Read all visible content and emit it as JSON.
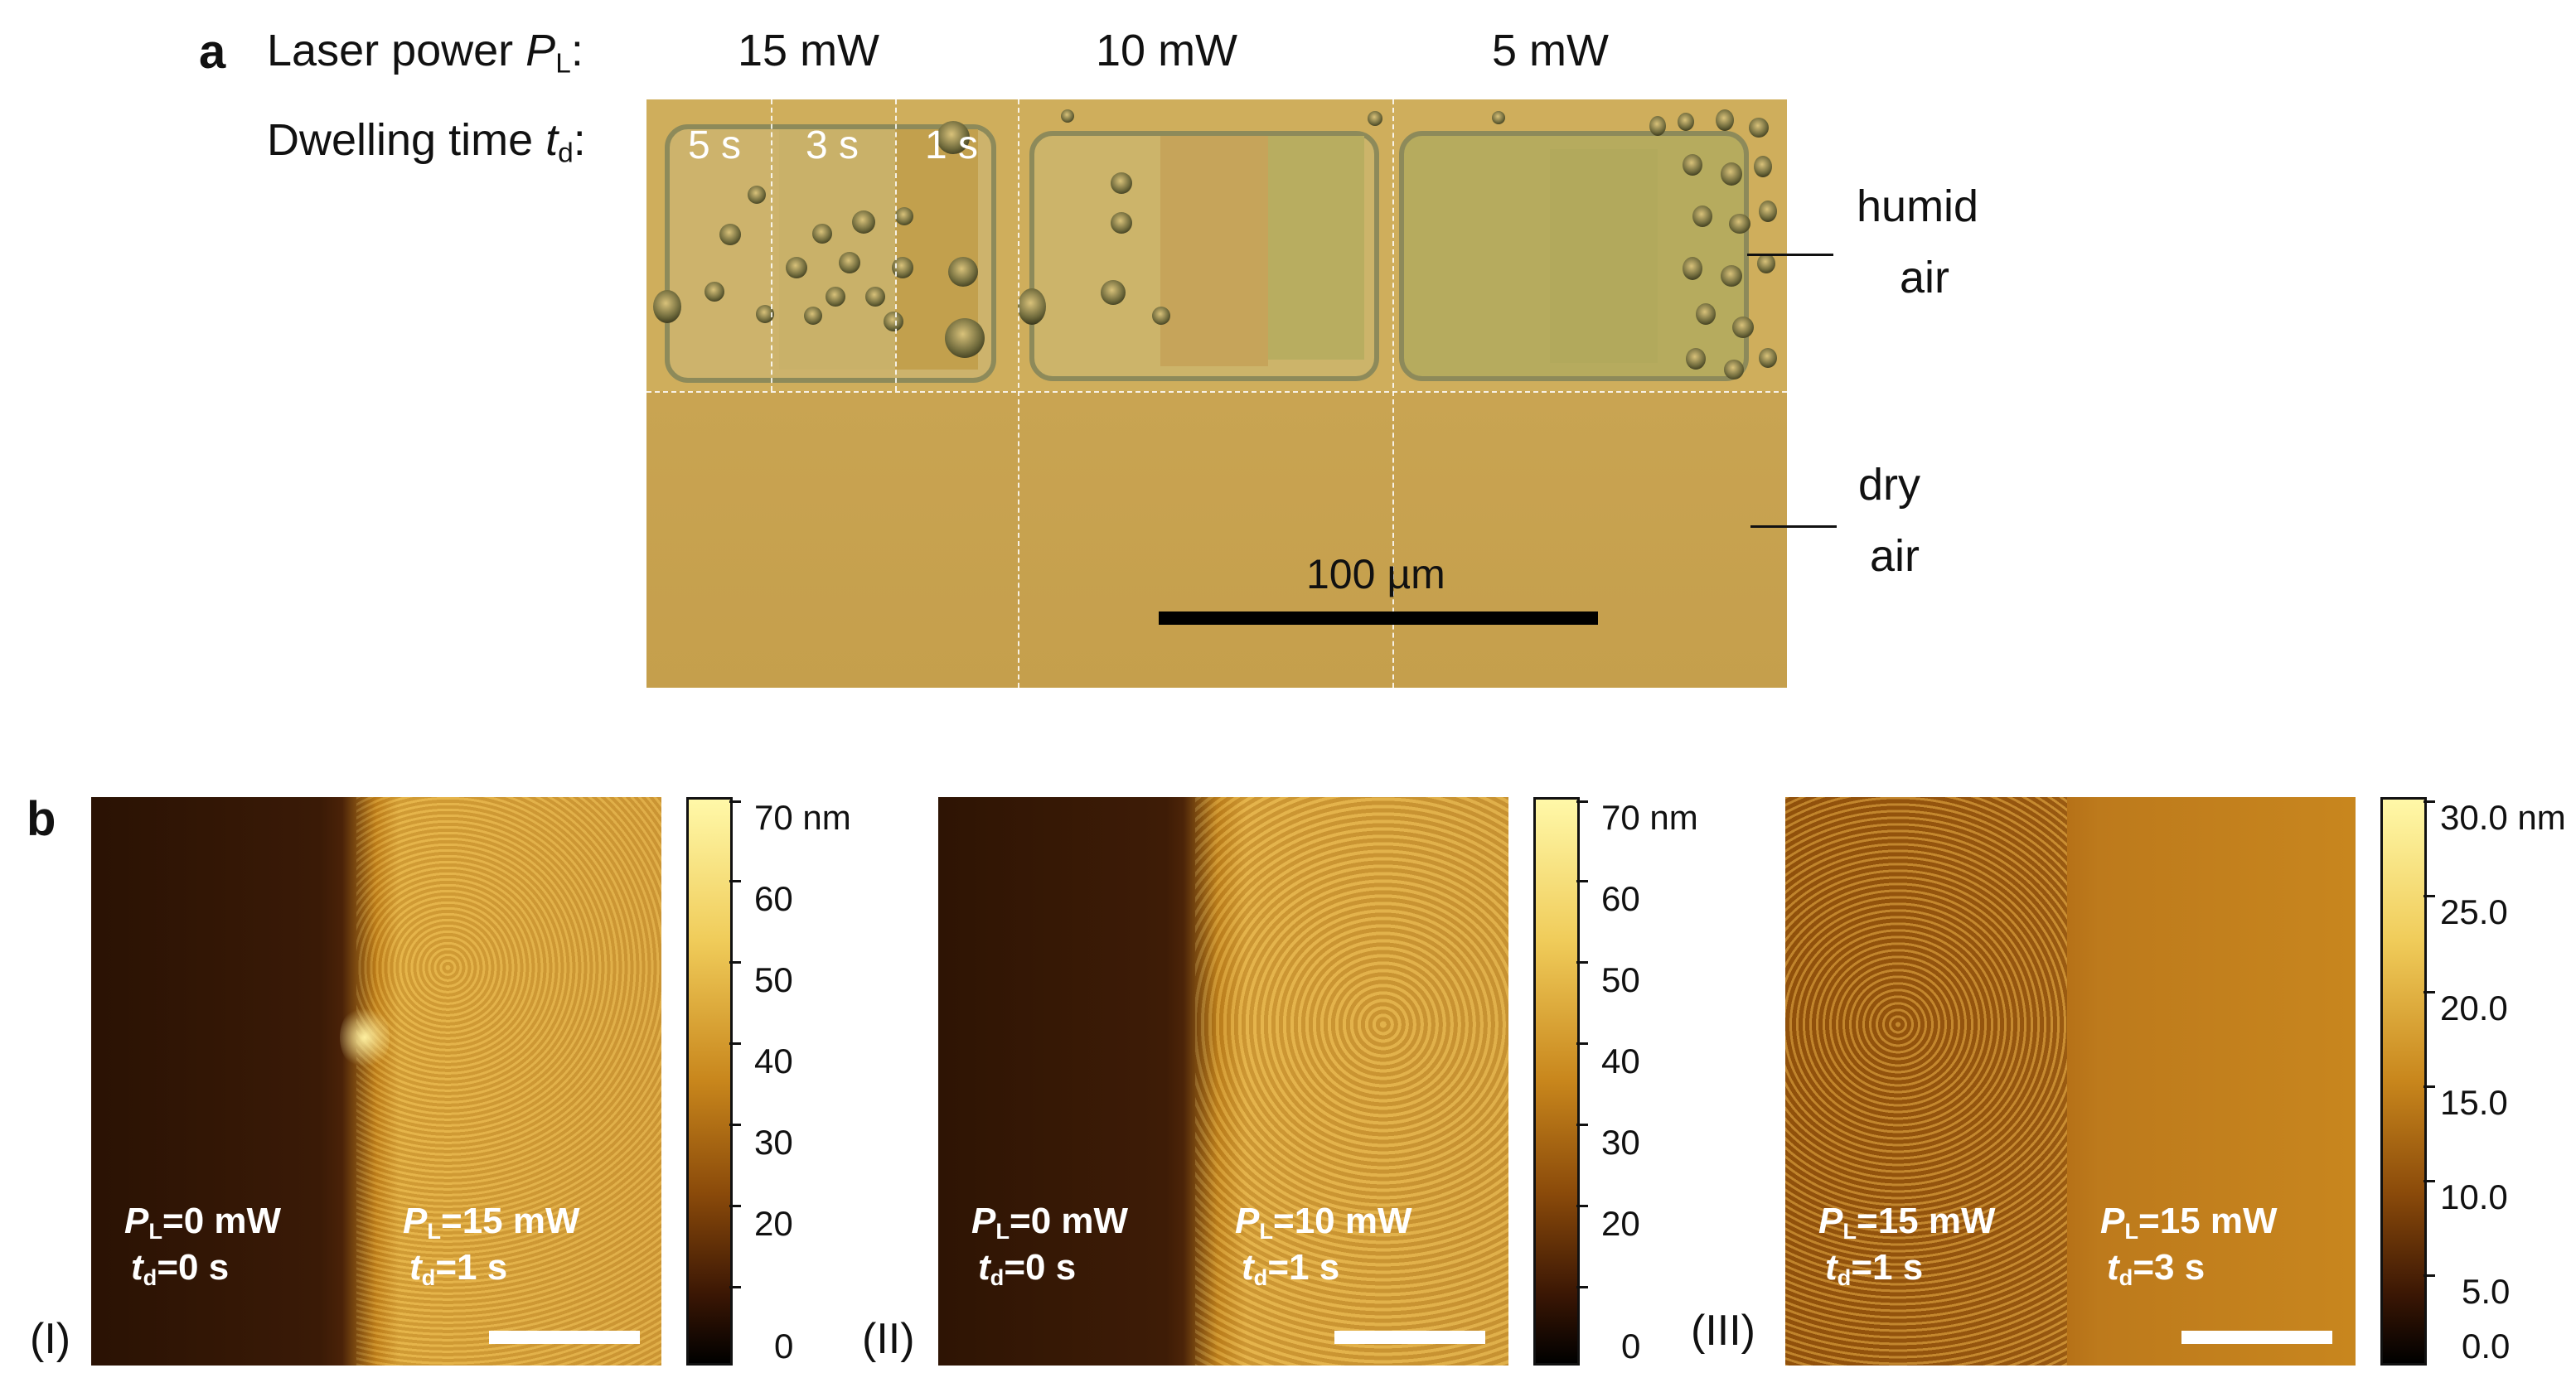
{
  "panel_a": {
    "letter": "a",
    "laser_label_prefix": "Laser power ",
    "laser_symbol": "P",
    "laser_sub": "L",
    "laser_colon": ":",
    "dwell_label_prefix": "Dwelling time ",
    "dwell_symbol": "t",
    "dwell_sub": "d",
    "dwell_colon": ":",
    "powers": [
      "15 mW",
      "10 mW",
      "5 mW"
    ],
    "dwell_times": [
      "5 s",
      "3 s",
      "1 s"
    ],
    "region_humid": [
      "humid",
      "air"
    ],
    "region_dry": [
      "dry",
      "air"
    ],
    "scale_label": "100 µm"
  },
  "panel_b": {
    "letter": "b",
    "images": [
      {
        "roman": "(I)",
        "left": {
          "p_sym": "P",
          "p_sub": "L",
          "p_val": "=0 mW",
          "t_sym": "t",
          "t_sub": "d",
          "t_val": "=0 s"
        },
        "right": {
          "p_sym": "P",
          "p_sub": "L",
          "p_val": "=15 mW",
          "t_sym": "t",
          "t_sub": "d",
          "t_val": "=1 s"
        },
        "colorbar_ticks": [
          "70 nm",
          "60",
          "50",
          "40",
          "30",
          "20",
          "0"
        ]
      },
      {
        "roman": "(II)",
        "left": {
          "p_sym": "P",
          "p_sub": "L",
          "p_val": "=0 mW",
          "t_sym": "t",
          "t_sub": "d",
          "t_val": "=0 s"
        },
        "right": {
          "p_sym": "P",
          "p_sub": "L",
          "p_val": "=10 mW",
          "t_sym": "t",
          "t_sub": "d",
          "t_val": "=1 s"
        },
        "colorbar_ticks": [
          "70 nm",
          "60",
          "50",
          "40",
          "30",
          "20",
          "0"
        ]
      },
      {
        "roman": "(III)",
        "left": {
          "p_sym": "P",
          "p_sub": "L",
          "p_val": "=15 mW",
          "t_sym": "t",
          "t_sub": "d",
          "t_val": "=1 s"
        },
        "right": {
          "p_sym": "P",
          "p_sub": "L",
          "p_val": "=15 mW",
          "t_sym": "t",
          "t_sub": "d",
          "t_val": "=3 s"
        },
        "colorbar_ticks": [
          "30.0 nm",
          "25.0",
          "20.0",
          "15.0",
          "10.0",
          "5.0",
          "0.0"
        ]
      }
    ]
  }
}
